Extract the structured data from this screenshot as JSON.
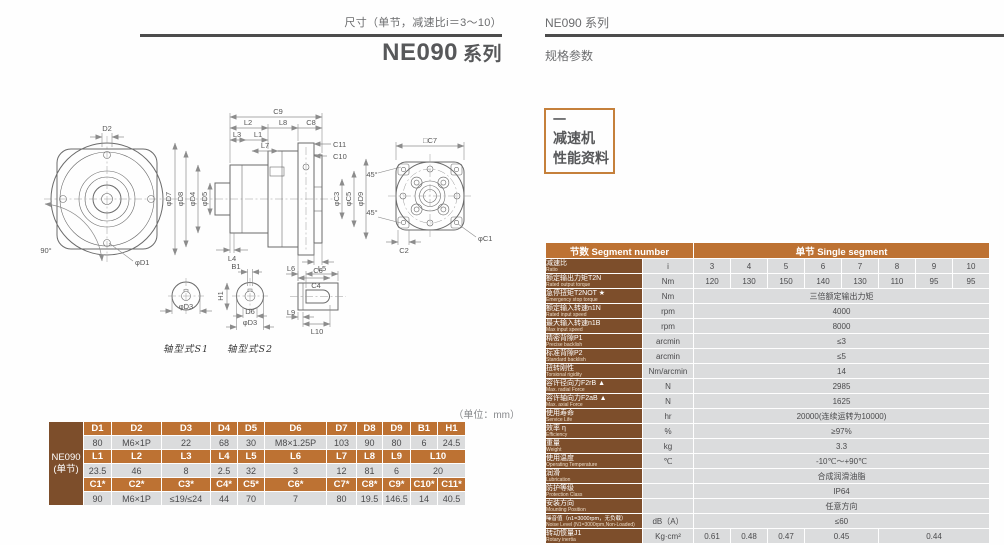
{
  "colors": {
    "header_orange": "#bd7233",
    "label_brown": "#7d4e2b",
    "cell_gray": "#dbdcdd",
    "rule_dark": "#4c4c4c",
    "title_gray": "#57585a",
    "badge_border": "#c5803b"
  },
  "page": {
    "left": {
      "subtitle": "尺寸（单节，减速比i＝3～10）",
      "title_main": "NE090",
      "title_suffix": "系列"
    },
    "right": {
      "series": "NE090 系列",
      "section": "规格参数",
      "badge": {
        "mark": "一",
        "line1": "减速机",
        "line2": "性能资料"
      }
    }
  },
  "drawing": {
    "labels": {
      "d2": "D2",
      "phi_d1": "φD1",
      "angle_90": "90°",
      "c9": "C9",
      "l2": "L2",
      "l8": "L8",
      "c8": "C8",
      "l3": "L3",
      "l1": "L1",
      "l7": "L7",
      "c11": "C11",
      "c10": "C10",
      "phi_d7": "φD7",
      "phi_d8": "φD8",
      "phi_d4": "φD4",
      "phi_d5": "φD5",
      "phi_c3": "φC3",
      "phi_c5": "φC5",
      "phi_d9": "φD9",
      "l4": "L4",
      "c6": "C6",
      "c4": "C4",
      "sq_c7": "□C7",
      "angle_45a": "45°",
      "angle_45b": "45°",
      "c2": "C2",
      "phi_c1": "φC1",
      "s1_phi_d3": "φD3",
      "s1_caption": "轴型式S1",
      "b1": "B1",
      "h1": "H1",
      "d6": "D6",
      "s2_phi_d3": "φD3",
      "s2_caption": "轴型式S2",
      "l6": "L6",
      "l5": "L5",
      "l9": "L9",
      "l10": "L10"
    }
  },
  "dim_table": {
    "unit_note": "（单位：mm）",
    "model": "NE090",
    "model_sub": "(单节)",
    "rows": [
      {
        "type": "header",
        "cells": [
          {
            "t": "D1",
            "s": 1
          },
          {
            "t": "D2",
            "s": 1
          },
          {
            "t": "D3",
            "s": 1
          },
          {
            "t": "D4",
            "s": 1
          },
          {
            "t": "D5",
            "s": 1
          },
          {
            "t": "D6",
            "s": 1
          },
          {
            "t": "D7",
            "s": 1
          },
          {
            "t": "D8",
            "s": 1
          },
          {
            "t": "D9",
            "s": 1
          },
          {
            "t": "B1",
            "s": 1
          },
          {
            "t": "H1",
            "s": 1
          }
        ]
      },
      {
        "type": "value",
        "cells": [
          {
            "t": "80",
            "s": 1
          },
          {
            "t": "M6×1P",
            "s": 1
          },
          {
            "t": "22",
            "s": 1
          },
          {
            "t": "68",
            "s": 1
          },
          {
            "t": "30",
            "s": 1
          },
          {
            "t": "M8×1.25P",
            "s": 1
          },
          {
            "t": "103",
            "s": 1
          },
          {
            "t": "90",
            "s": 1
          },
          {
            "t": "80",
            "s": 1
          },
          {
            "t": "6",
            "s": 1
          },
          {
            "t": "24.5",
            "s": 1
          }
        ]
      },
      {
        "type": "header",
        "cells": [
          {
            "t": "L1",
            "s": 1
          },
          {
            "t": "L2",
            "s": 1
          },
          {
            "t": "L3",
            "s": 1
          },
          {
            "t": "L4",
            "s": 1
          },
          {
            "t": "L5",
            "s": 1
          },
          {
            "t": "L6",
            "s": 1
          },
          {
            "t": "L7",
            "s": 1
          },
          {
            "t": "L8",
            "s": 1
          },
          {
            "t": "L9",
            "s": 1
          },
          {
            "t": "L10",
            "s": 2
          }
        ]
      },
      {
        "type": "value",
        "cells": [
          {
            "t": "23.5",
            "s": 1
          },
          {
            "t": "46",
            "s": 1
          },
          {
            "t": "8",
            "s": 1
          },
          {
            "t": "2.5",
            "s": 1
          },
          {
            "t": "32",
            "s": 1
          },
          {
            "t": "3",
            "s": 1
          },
          {
            "t": "12",
            "s": 1
          },
          {
            "t": "81",
            "s": 1
          },
          {
            "t": "6",
            "s": 1
          },
          {
            "t": "20",
            "s": 2
          }
        ]
      },
      {
        "type": "header",
        "cells": [
          {
            "t": "C1*",
            "s": 1
          },
          {
            "t": "C2*",
            "s": 1
          },
          {
            "t": "C3*",
            "s": 1
          },
          {
            "t": "C4*",
            "s": 1
          },
          {
            "t": "C5*",
            "s": 1
          },
          {
            "t": "C6*",
            "s": 1
          },
          {
            "t": "C7*",
            "s": 1
          },
          {
            "t": "C8*",
            "s": 1
          },
          {
            "t": "C9*",
            "s": 1
          },
          {
            "t": "C10*",
            "s": 1
          },
          {
            "t": "C11*",
            "s": 1
          }
        ]
      },
      {
        "type": "value",
        "cells": [
          {
            "t": "90",
            "s": 1
          },
          {
            "t": "M6×1P",
            "s": 1
          },
          {
            "t": "≤19/≤24",
            "s": 1
          },
          {
            "t": "44",
            "s": 1
          },
          {
            "t": "70",
            "s": 1
          },
          {
            "t": "7",
            "s": 1
          },
          {
            "t": "80",
            "s": 1
          },
          {
            "t": "19.5",
            "s": 1
          },
          {
            "t": "146.5",
            "s": 1
          },
          {
            "t": "14",
            "s": 1
          },
          {
            "t": "40.5",
            "s": 1
          }
        ]
      }
    ]
  },
  "spec_table": {
    "header": {
      "left": "节数 Segment number",
      "right": "单节 Single segment"
    },
    "rows": [
      {
        "cn": "减速比",
        "en": "Ratio",
        "unit": "i",
        "cells": [
          {
            "t": "3",
            "s": 1
          },
          {
            "t": "4",
            "s": 1
          },
          {
            "t": "5",
            "s": 1
          },
          {
            "t": "6",
            "s": 1
          },
          {
            "t": "7",
            "s": 1
          },
          {
            "t": "8",
            "s": 1
          },
          {
            "t": "9",
            "s": 1
          },
          {
            "t": "10",
            "s": 1
          }
        ]
      },
      {
        "cn": "额定输出力矩T2N",
        "en": "Rated output torque",
        "unit": "Nm",
        "cells": [
          {
            "t": "120",
            "s": 1
          },
          {
            "t": "130",
            "s": 1
          },
          {
            "t": "150",
            "s": 1
          },
          {
            "t": "140",
            "s": 1
          },
          {
            "t": "130",
            "s": 1
          },
          {
            "t": "110",
            "s": 1
          },
          {
            "t": "95",
            "s": 1
          },
          {
            "t": "95",
            "s": 1
          }
        ]
      },
      {
        "cn": "急停扭矩T2NOT ★",
        "en": "Emergency stop torque",
        "unit": "Nm",
        "cells": [
          {
            "t": "三倍额定输出力矩",
            "s": 8
          }
        ]
      },
      {
        "cn": "额定输入转速n1N",
        "en": "Rated input speed",
        "unit": "rpm",
        "cells": [
          {
            "t": "4000",
            "s": 8
          }
        ]
      },
      {
        "cn": "最大输入转速n1B",
        "en": "Max input speed",
        "unit": "rpm",
        "cells": [
          {
            "t": "8000",
            "s": 8
          }
        ]
      },
      {
        "cn": "精密背隙P1",
        "en": "Precise backlish",
        "unit": "arcmin",
        "cells": [
          {
            "t": "≤3",
            "s": 8
          }
        ]
      },
      {
        "cn": "标准背隙P2",
        "en": "Standard backlish",
        "unit": "arcmin",
        "cells": [
          {
            "t": "≤5",
            "s": 8
          }
        ]
      },
      {
        "cn": "扭转刚性",
        "en": "Torsional rigidity",
        "unit": "Nm/arcmin",
        "cells": [
          {
            "t": "14",
            "s": 8
          }
        ]
      },
      {
        "cn": "容许径向力F2rB ▲",
        "en": "Max. radial Force",
        "unit": "N",
        "cells": [
          {
            "t": "2985",
            "s": 8
          }
        ]
      },
      {
        "cn": "容许轴向力F2aB ▲",
        "en": "Max. axial Force",
        "unit": "N",
        "cells": [
          {
            "t": "1625",
            "s": 8
          }
        ]
      },
      {
        "cn": "使用寿命",
        "en": "Service Life",
        "unit": "hr",
        "cells": [
          {
            "t": "20000(连续运转为10000)",
            "s": 8
          }
        ]
      },
      {
        "cn": "效率 η",
        "en": "Efficiency",
        "unit": "%",
        "cells": [
          {
            "t": "≥97%",
            "s": 8
          }
        ]
      },
      {
        "cn": "重量",
        "en": "Weight",
        "unit": "kg",
        "cells": [
          {
            "t": "3.3",
            "s": 8
          }
        ]
      },
      {
        "cn": "使用温度",
        "en": "Operating Temperature",
        "unit": "℃",
        "cells": [
          {
            "t": "-10℃～+90℃",
            "s": 8
          }
        ]
      },
      {
        "cn": "润滑",
        "en": "Lubrication",
        "unit": "",
        "cells": [
          {
            "t": "合成润滑油脂",
            "s": 8
          }
        ]
      },
      {
        "cn": "防护等级",
        "en": "Protection Class",
        "unit": "",
        "cells": [
          {
            "t": "IP64",
            "s": 8
          }
        ]
      },
      {
        "cn": "安装方向",
        "en": "Mounting Position",
        "unit": "",
        "cells": [
          {
            "t": "任意方向",
            "s": 8
          }
        ]
      },
      {
        "cn": "噪音值（n1=3000rpm，无负载）",
        "en": "Noise Level (N1=3000rpm,Non-Loaded)",
        "unit": "dB（A）",
        "cells": [
          {
            "t": "≤60",
            "s": 8
          }
        ]
      },
      {
        "cn": "转动惯量J1",
        "en": "Rotary inertia",
        "unit": "Kg·cm²",
        "cells": [
          {
            "t": "0.61",
            "s": 1
          },
          {
            "t": "0.48",
            "s": 1
          },
          {
            "t": "0.47",
            "s": 1
          },
          {
            "t": "0.45",
            "s": 2
          },
          {
            "t": "0.44",
            "s": 3
          }
        ]
      }
    ]
  }
}
